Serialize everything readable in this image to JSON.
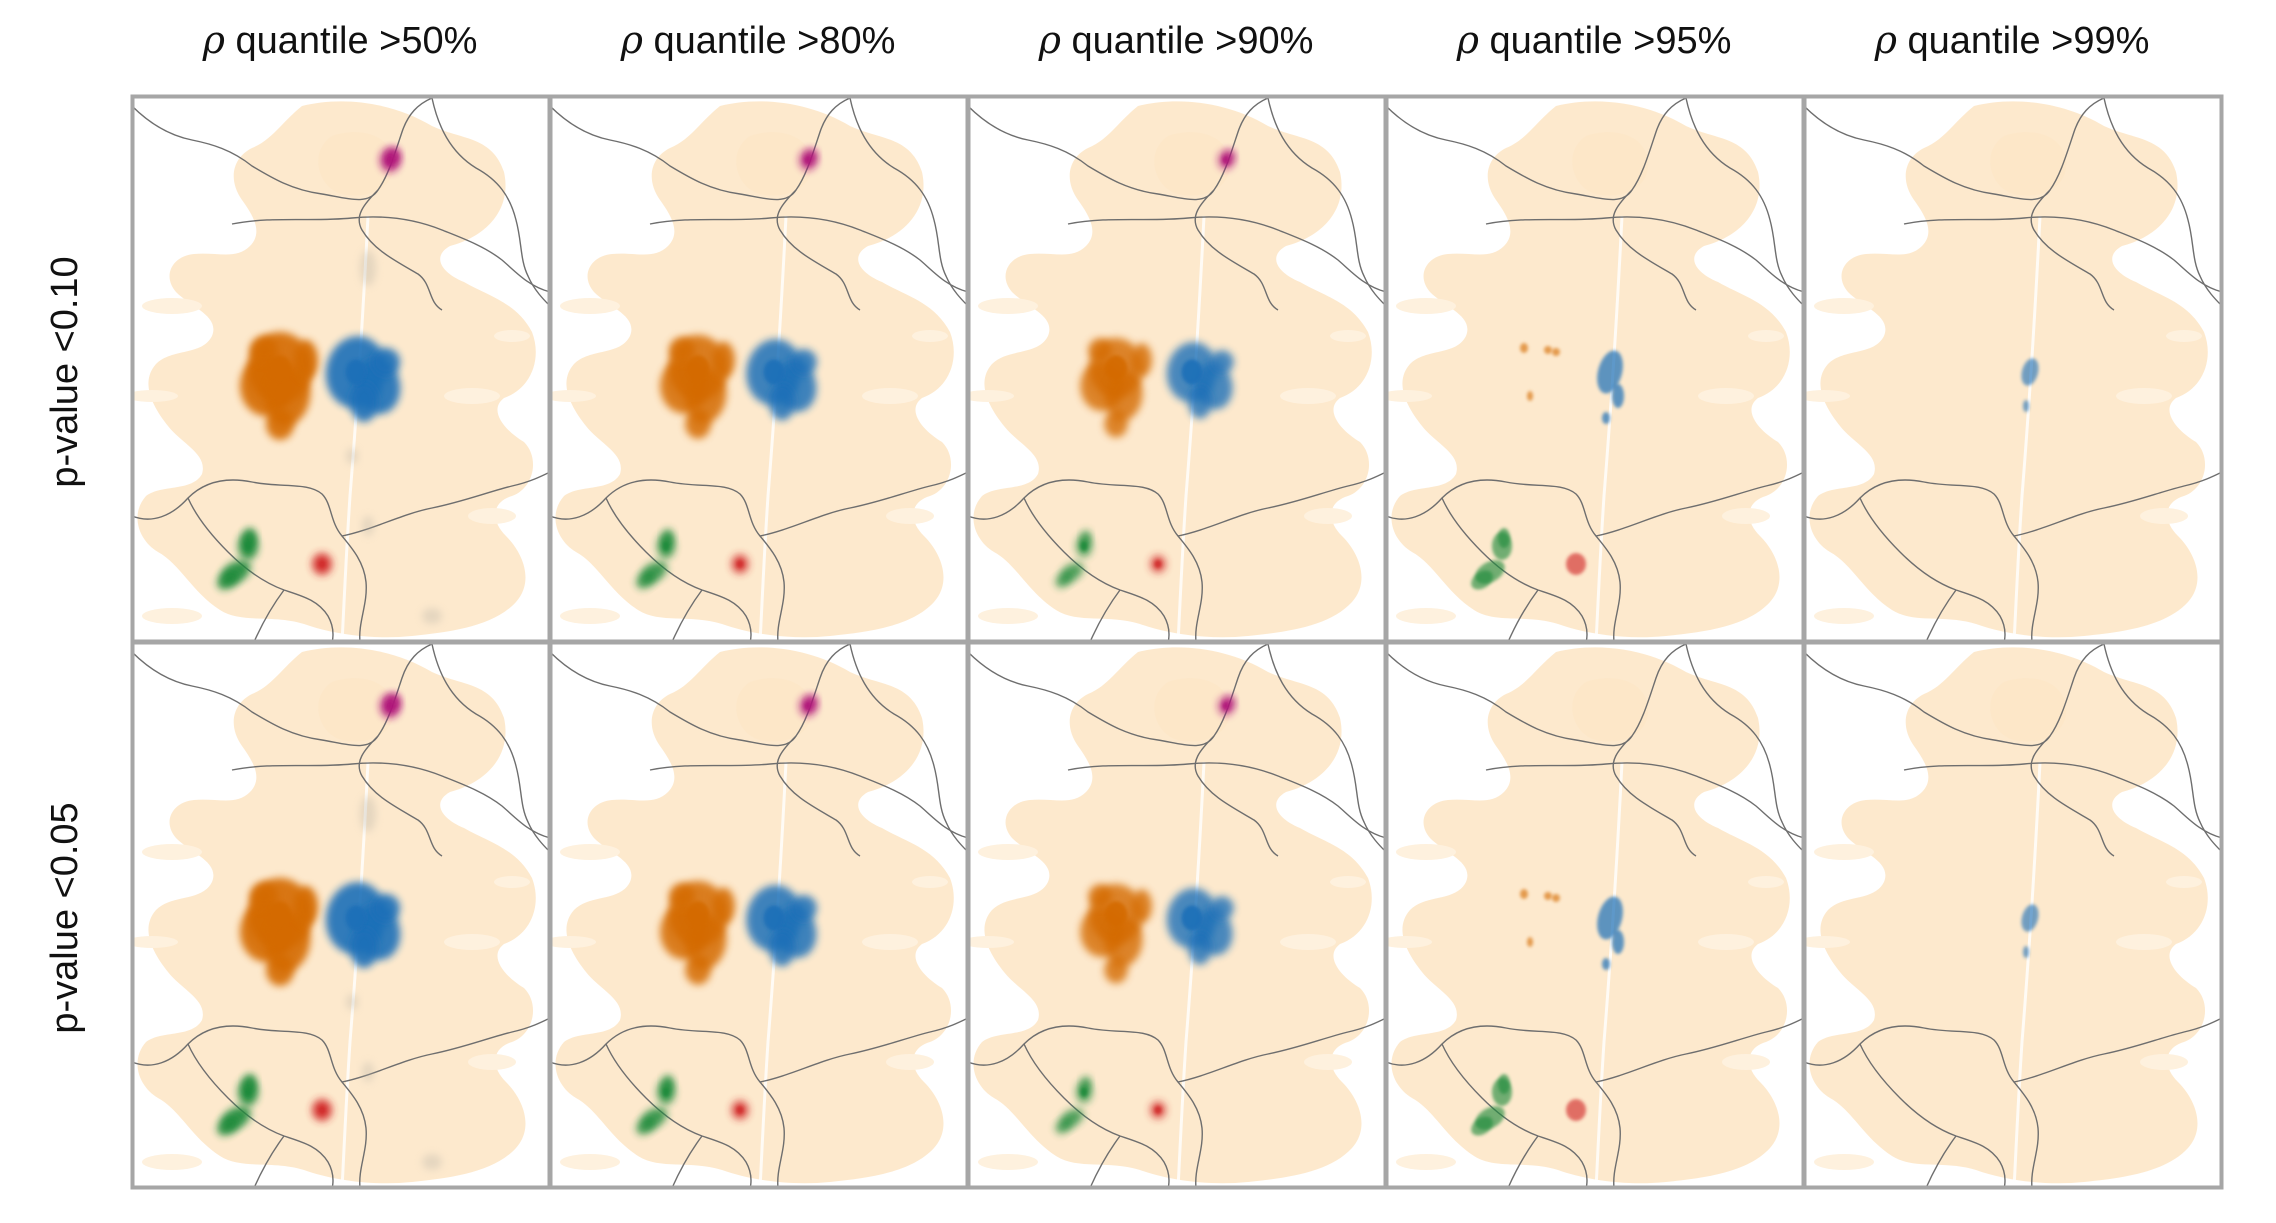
{
  "column_headers": [
    {
      "symbol": "ρ",
      "label": "quantile >50%"
    },
    {
      "symbol": "ρ",
      "label": "quantile >80%"
    },
    {
      "symbol": "ρ",
      "label": "quantile >90%"
    },
    {
      "symbol": "ρ",
      "label": "quantile >95%"
    },
    {
      "symbol": "ρ",
      "label": "quantile >99%"
    }
  ],
  "row_headers": [
    "p-value <0.10",
    "p-value <0.05"
  ],
  "colors": {
    "background_land": "#fde7c8",
    "background_land_light": "#fef1de",
    "border_line": "#6e6e6e",
    "panel_frame": "#a6a6a6",
    "cluster_orange": "#d46a00",
    "cluster_blue": "#1f6fb8",
    "cluster_green": "#1f8a3a",
    "cluster_magenta": "#b0177a",
    "cluster_red": "#d12a2a",
    "cluster_grey": "#b8b2a6"
  },
  "clusters_by_column": [
    {
      "orange": 1.0,
      "blue": 1.0,
      "green": 1.0,
      "magenta": 1.0,
      "red": 1.0,
      "grey": 1.0
    },
    {
      "orange": 0.85,
      "blue": 0.85,
      "green": 0.8,
      "magenta": 0.75,
      "red": 0.75,
      "grey": 0.0
    },
    {
      "orange": 0.7,
      "blue": 0.7,
      "green": 0.6,
      "magenta": 0.6,
      "red": 0.6,
      "grey": 0.0
    },
    {
      "orange": 0.2,
      "blue": 0.45,
      "green": 0.2,
      "magenta": 0.0,
      "red": 0.25,
      "grey": 0.0
    },
    {
      "orange": 0.0,
      "blue": 0.2,
      "green": 0.0,
      "magenta": 0.0,
      "red": 0.0,
      "grey": 0.0
    }
  ]
}
